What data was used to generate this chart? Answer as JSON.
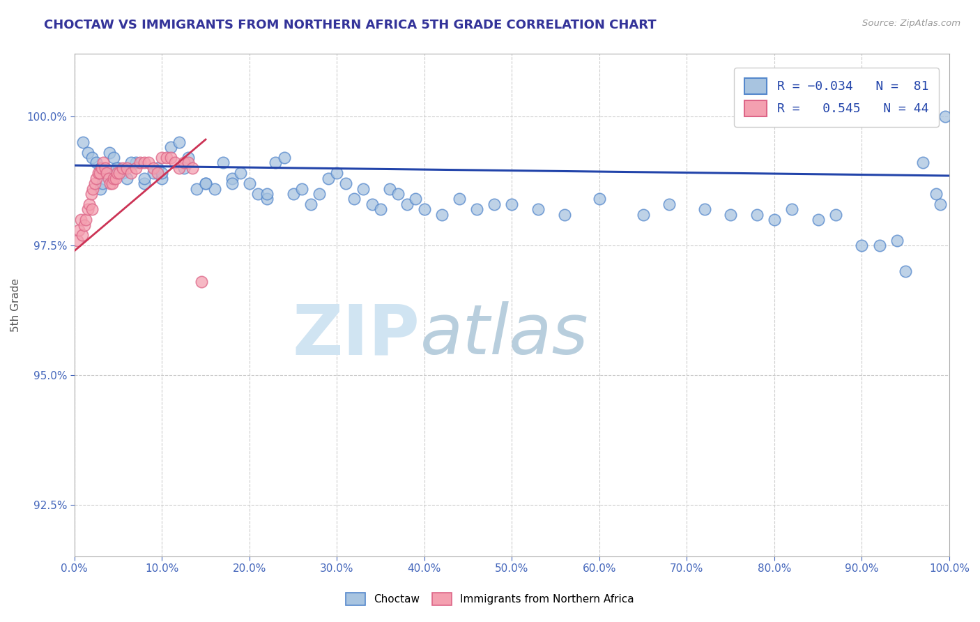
{
  "title": "CHOCTAW VS IMMIGRANTS FROM NORTHERN AFRICA 5TH GRADE CORRELATION CHART",
  "source": "Source: ZipAtlas.com",
  "ylabel": "5th Grade",
  "ytick_values": [
    92.5,
    95.0,
    97.5,
    100.0
  ],
  "xmin": 0.0,
  "xmax": 100.0,
  "ymin": 91.5,
  "ymax": 101.2,
  "color_blue": "#A8C4E0",
  "color_pink": "#F4A0B0",
  "color_blue_edge": "#5588CC",
  "color_pink_edge": "#DD6688",
  "color_blue_line": "#2244AA",
  "color_pink_line": "#CC3355",
  "blue_line_y0": 99.05,
  "blue_line_y1": 98.85,
  "pink_line_x0": 0.0,
  "pink_line_y0": 97.4,
  "pink_line_x1": 15.0,
  "pink_line_y1": 99.55,
  "blue_scatter_x": [
    1.0,
    1.5,
    2.0,
    2.5,
    3.0,
    3.5,
    4.0,
    4.5,
    5.0,
    5.5,
    6.0,
    7.0,
    8.0,
    9.0,
    9.5,
    10.0,
    11.0,
    12.0,
    13.0,
    14.0,
    15.0,
    16.0,
    17.0,
    18.0,
    19.0,
    20.0,
    21.0,
    22.0,
    23.0,
    24.0,
    25.0,
    26.0,
    27.0,
    28.0,
    29.0,
    30.0,
    31.0,
    32.0,
    33.0,
    34.0,
    35.0,
    36.0,
    37.0,
    38.0,
    39.0,
    40.0,
    42.0,
    44.0,
    46.0,
    48.0,
    50.0,
    53.0,
    56.0,
    60.0,
    65.0,
    68.0,
    72.0,
    75.0,
    78.0,
    80.0,
    82.0,
    85.0,
    87.0,
    90.0,
    92.0,
    94.0,
    95.0,
    97.0,
    98.5,
    99.0,
    99.5,
    3.0,
    3.2,
    4.8,
    6.5,
    8.0,
    10.0,
    12.5,
    15.0,
    18.0,
    22.0
  ],
  "blue_scatter_y": [
    99.5,
    99.3,
    99.2,
    99.1,
    99.0,
    98.9,
    99.3,
    99.2,
    99.0,
    98.9,
    98.8,
    99.1,
    98.7,
    98.9,
    99.0,
    98.8,
    99.4,
    99.5,
    99.2,
    98.6,
    98.7,
    98.6,
    99.1,
    98.8,
    98.9,
    98.7,
    98.5,
    98.4,
    99.1,
    99.2,
    98.5,
    98.6,
    98.3,
    98.5,
    98.8,
    98.9,
    98.7,
    98.4,
    98.6,
    98.3,
    98.2,
    98.6,
    98.5,
    98.3,
    98.4,
    98.2,
    98.1,
    98.4,
    98.2,
    98.3,
    98.3,
    98.2,
    98.1,
    98.4,
    98.1,
    98.3,
    98.2,
    98.1,
    98.1,
    98.0,
    98.2,
    98.0,
    98.1,
    97.5,
    97.5,
    97.6,
    97.0,
    99.1,
    98.5,
    98.3,
    100.0,
    98.6,
    98.7,
    99.0,
    99.1,
    98.8,
    98.9,
    99.0,
    98.7,
    98.7,
    98.5
  ],
  "pink_scatter_x": [
    0.3,
    0.5,
    0.7,
    0.9,
    1.1,
    1.3,
    1.5,
    1.7,
    1.9,
    2.1,
    2.3,
    2.5,
    2.7,
    2.9,
    3.1,
    3.3,
    3.5,
    3.7,
    3.9,
    4.1,
    4.3,
    4.5,
    4.7,
    4.9,
    5.1,
    5.5,
    6.0,
    6.5,
    7.0,
    7.5,
    8.0,
    8.5,
    9.0,
    9.5,
    10.0,
    10.5,
    11.0,
    11.5,
    12.0,
    12.5,
    13.0,
    13.5,
    14.5,
    2.0
  ],
  "pink_scatter_y": [
    97.6,
    97.8,
    98.0,
    97.7,
    97.9,
    98.0,
    98.2,
    98.3,
    98.5,
    98.6,
    98.7,
    98.8,
    98.9,
    98.9,
    99.0,
    99.1,
    99.0,
    98.9,
    98.8,
    98.7,
    98.7,
    98.8,
    98.8,
    98.9,
    98.9,
    99.0,
    99.0,
    98.9,
    99.0,
    99.1,
    99.1,
    99.1,
    99.0,
    98.9,
    99.2,
    99.2,
    99.2,
    99.1,
    99.0,
    99.1,
    99.1,
    99.0,
    96.8,
    98.2
  ]
}
